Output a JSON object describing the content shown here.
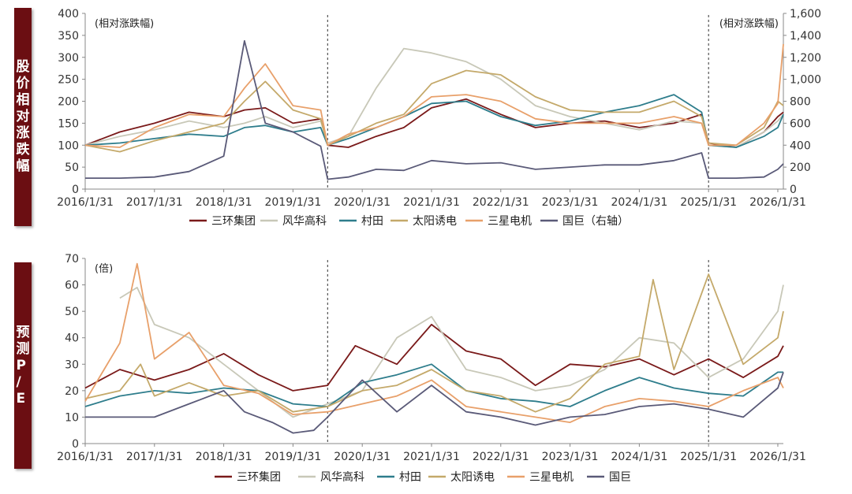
{
  "panels": {
    "top": {
      "side_label": "股价相对涨跌幅"
    },
    "bottom": {
      "side_label": "预测P/E"
    }
  },
  "chart_data": [
    {
      "type": "line",
      "title": "",
      "left_unit": "(相对涨跌幅)",
      "right_unit": "(相对涨跌幅)",
      "ylim": [
        0,
        400
      ],
      "yticks": [
        0,
        50,
        100,
        150,
        200,
        250,
        300,
        350,
        400
      ],
      "y2lim": [
        0,
        1600
      ],
      "y2ticks": [
        "0",
        "200",
        "400",
        "600",
        "800",
        "1,000",
        "1,200",
        "1,400",
        "1,600"
      ],
      "y2tick_values": [
        0,
        200,
        400,
        600,
        800,
        1000,
        1200,
        1400,
        1600
      ],
      "xlim": [
        2016.0,
        2026.08
      ],
      "xticks": [
        "2016/1/31",
        "2017/1/31",
        "2018/1/31",
        "2019/1/31",
        "2020/1/31",
        "2021/1/31",
        "2022/1/31",
        "2023/1/31",
        "2024/1/31",
        "2025/1/31",
        "2026/1/31"
      ],
      "xtick_values": [
        2016.0,
        2017.0,
        2018.0,
        2019.0,
        2020.0,
        2021.0,
        2022.0,
        2023.0,
        2024.0,
        2025.0,
        2026.0
      ],
      "vlines": [
        2019.5,
        2025.0
      ],
      "legend_position": "bottom",
      "x": [
        2016.0,
        2016.5,
        2017.0,
        2017.5,
        2018.0,
        2018.3,
        2018.6,
        2019.0,
        2019.4,
        2019.5,
        2019.8,
        2020.2,
        2020.6,
        2021.0,
        2021.5,
        2022.0,
        2022.5,
        2023.0,
        2023.5,
        2024.0,
        2024.5,
        2024.9,
        2025.0,
        2025.4,
        2025.8,
        2026.0,
        2026.08
      ],
      "series": [
        {
          "name": "三环集团",
          "color": "#7a1a1a",
          "axis": "left",
          "values": [
            100,
            130,
            150,
            175,
            165,
            180,
            185,
            150,
            160,
            100,
            95,
            120,
            140,
            185,
            205,
            170,
            140,
            150,
            155,
            140,
            150,
            170,
            105,
            95,
            130,
            165,
            175
          ]
        },
        {
          "name": "风华高科",
          "color": "#c8c8b8",
          "axis": "left",
          "values": [
            100,
            120,
            135,
            155,
            140,
            150,
            165,
            140,
            155,
            105,
            120,
            230,
            320,
            310,
            290,
            250,
            190,
            165,
            150,
            135,
            155,
            150,
            100,
            95,
            130,
            155,
            170
          ]
        },
        {
          "name": "村田",
          "color": "#2e7d8c",
          "axis": "left",
          "values": [
            100,
            105,
            115,
            125,
            120,
            140,
            145,
            130,
            140,
            100,
            115,
            140,
            165,
            195,
            200,
            165,
            145,
            155,
            175,
            190,
            215,
            175,
            100,
            95,
            120,
            140,
            170
          ]
        },
        {
          "name": "太阳诱电",
          "color": "#c4a96a",
          "axis": "left",
          "values": [
            100,
            85,
            110,
            130,
            150,
            200,
            245,
            180,
            160,
            100,
            120,
            150,
            170,
            240,
            270,
            260,
            210,
            180,
            175,
            175,
            200,
            165,
            105,
            100,
            140,
            200,
            190
          ]
        },
        {
          "name": "三星电机",
          "color": "#e8a06a",
          "axis": "left",
          "values": [
            100,
            95,
            140,
            170,
            165,
            230,
            285,
            190,
            180,
            100,
            125,
            140,
            165,
            210,
            215,
            200,
            160,
            150,
            150,
            150,
            165,
            150,
            100,
            100,
            150,
            195,
            330
          ]
        },
        {
          "name": "国巨（右轴）",
          "color": "#5a5a78",
          "axis": "right",
          "values": [
            100,
            100,
            110,
            160,
            300,
            1350,
            600,
            520,
            390,
            90,
            110,
            180,
            170,
            260,
            230,
            240,
            180,
            200,
            220,
            220,
            260,
            330,
            100,
            100,
            110,
            180,
            230
          ]
        }
      ]
    },
    {
      "type": "line",
      "title": "",
      "left_unit": "(倍)",
      "ylim": [
        0,
        70
      ],
      "yticks": [
        0,
        10,
        20,
        30,
        40,
        50,
        60,
        70
      ],
      "xlim": [
        2016.0,
        2026.08
      ],
      "xticks": [
        "2016/1/31",
        "2017/1/31",
        "2018/1/31",
        "2019/1/31",
        "2020/1/31",
        "2021/1/31",
        "2022/1/31",
        "2023/1/31",
        "2024/1/31",
        "2025/1/31",
        "2026/1/31"
      ],
      "xtick_values": [
        2016.0,
        2017.0,
        2018.0,
        2019.0,
        2020.0,
        2021.0,
        2022.0,
        2023.0,
        2024.0,
        2025.0,
        2026.0
      ],
      "vlines": [
        2019.5,
        2025.0
      ],
      "legend_position": "bottom",
      "series": [
        {
          "name": "三环集团",
          "color": "#7a1a1a",
          "x": [
            2016.0,
            2016.5,
            2017.0,
            2017.5,
            2018.0,
            2018.5,
            2019.0,
            2019.5,
            2019.9,
            2020.5,
            2021.0,
            2021.5,
            2022.0,
            2022.5,
            2023.0,
            2023.5,
            2024.0,
            2024.5,
            2025.0,
            2025.5,
            2026.0,
            2026.08
          ],
          "values": [
            21,
            28,
            24,
            28,
            34,
            26,
            20,
            22,
            37,
            30,
            45,
            35,
            32,
            22,
            30,
            29,
            32,
            26,
            32,
            25,
            33,
            37
          ]
        },
        {
          "name": "风华高科",
          "color": "#c8c8b8",
          "x": [
            2016.5,
            2016.75,
            2017.0,
            2017.5,
            2018.0,
            2018.5,
            2019.0,
            2019.5,
            2020.0,
            2020.5,
            2021.0,
            2021.5,
            2022.0,
            2022.5,
            2023.0,
            2023.5,
            2024.0,
            2024.5,
            2025.0,
            2025.5,
            2026.0,
            2026.08
          ],
          "values": [
            55,
            59,
            45,
            40,
            30,
            20,
            10,
            15,
            20,
            40,
            48,
            28,
            25,
            20,
            22,
            28,
            40,
            38,
            25,
            32,
            50,
            60
          ]
        },
        {
          "name": "村田",
          "color": "#2e7d8c",
          "x": [
            2016.0,
            2016.5,
            2017.0,
            2017.5,
            2018.0,
            2018.5,
            2019.0,
            2019.5,
            2020.0,
            2020.5,
            2021.0,
            2021.5,
            2022.0,
            2022.5,
            2023.0,
            2023.5,
            2024.0,
            2024.5,
            2025.0,
            2025.5,
            2026.0,
            2026.08
          ],
          "values": [
            14,
            18,
            20,
            19,
            21,
            20,
            15,
            14,
            23,
            26,
            30,
            20,
            17,
            16,
            14,
            20,
            25,
            21,
            19,
            18,
            27,
            27
          ]
        },
        {
          "name": "太阳诱电",
          "color": "#c4a96a",
          "x": [
            2016.0,
            2016.5,
            2016.8,
            2017.0,
            2017.5,
            2018.0,
            2018.5,
            2019.0,
            2019.5,
            2020.0,
            2020.5,
            2021.0,
            2021.5,
            2022.0,
            2022.5,
            2023.0,
            2023.5,
            2024.0,
            2024.2,
            2024.5,
            2025.0,
            2025.5,
            2026.0,
            2026.08
          ],
          "values": [
            17,
            20,
            30,
            18,
            23,
            18,
            20,
            12,
            14,
            20,
            22,
            28,
            20,
            18,
            12,
            17,
            30,
            33,
            62,
            28,
            64,
            30,
            40,
            50
          ]
        },
        {
          "name": "三星电机",
          "color": "#e8a06a",
          "x": [
            2016.0,
            2016.5,
            2016.75,
            2017.0,
            2017.5,
            2018.0,
            2018.5,
            2019.0,
            2019.5,
            2020.0,
            2020.5,
            2021.0,
            2021.5,
            2022.0,
            2022.5,
            2023.0,
            2023.5,
            2024.0,
            2024.5,
            2025.0,
            2025.5,
            2026.0,
            2026.08
          ],
          "values": [
            16,
            38,
            68,
            32,
            42,
            22,
            19,
            11,
            12,
            15,
            18,
            24,
            14,
            12,
            10,
            8,
            14,
            17,
            16,
            14,
            20,
            25,
            21
          ]
        },
        {
          "name": "国巨",
          "color": "#5a5a78",
          "x": [
            2016.0,
            2016.5,
            2017.0,
            2017.5,
            2018.0,
            2018.3,
            2018.7,
            2019.0,
            2019.3,
            2019.5,
            2020.0,
            2020.5,
            2021.0,
            2021.5,
            2022.0,
            2022.5,
            2023.0,
            2023.5,
            2024.0,
            2024.5,
            2025.0,
            2025.5,
            2026.0,
            2026.08
          ],
          "values": [
            10,
            10,
            10,
            15,
            20,
            12,
            8,
            4,
            5,
            10,
            24,
            12,
            22,
            12,
            10,
            7,
            10,
            11,
            14,
            15,
            13,
            10,
            21,
            27
          ]
        }
      ]
    }
  ]
}
